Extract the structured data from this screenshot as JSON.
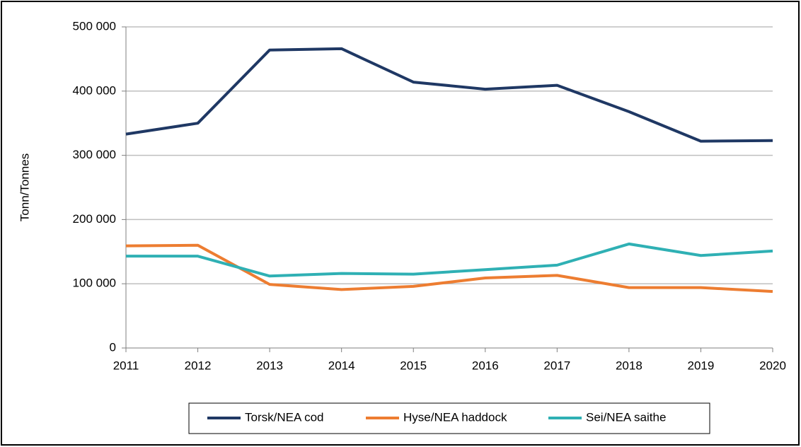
{
  "chart_data": {
    "type": "line",
    "y_label": "Tonn/Tonnes",
    "x": [
      2011,
      2012,
      2013,
      2014,
      2015,
      2016,
      2017,
      2018,
      2019,
      2020
    ],
    "xlim": [
      2011,
      2020
    ],
    "ylim": [
      0,
      500000
    ],
    "yticks": [
      0,
      {
        "value": 100000,
        "label": "100 000"
      },
      {
        "value": 200000,
        "label": "200 000"
      },
      {
        "value": 300000,
        "label": "300 000"
      },
      {
        "value": 400000,
        "label": "400 000"
      },
      {
        "value": 500000,
        "label": "500 000"
      }
    ],
    "grid": true,
    "legend": "bottom",
    "series": [
      {
        "name": "Torsk/NEA cod",
        "color": "#1f3864",
        "values": [
          333000,
          350000,
          464000,
          466000,
          414000,
          403000,
          409000,
          368000,
          322000,
          323000
        ]
      },
      {
        "name": "Hyse/NEA haddock",
        "color": "#ed7d31",
        "values": [
          159000,
          160000,
          99000,
          91000,
          96000,
          109000,
          113000,
          94000,
          94000,
          88000
        ]
      },
      {
        "name": "Sei/NEA saithe",
        "color": "#2fb0b4",
        "values": [
          143000,
          143000,
          112000,
          116000,
          115000,
          122000,
          129000,
          162000,
          144000,
          151000
        ]
      }
    ]
  }
}
